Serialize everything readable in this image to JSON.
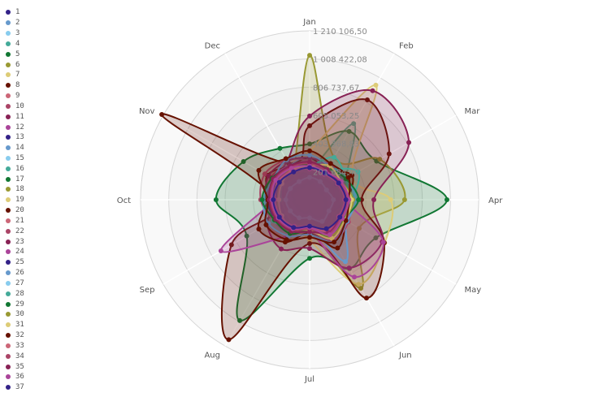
{
  "chart_data": {
    "type": "radar",
    "categories": [
      "Jan",
      "Feb",
      "Mar",
      "Apr",
      "May",
      "Jun",
      "Jul",
      "Aug",
      "Sep",
      "Oct",
      "Nov",
      "Dec"
    ],
    "rlim": [
      0,
      1210106.5
    ],
    "ticks": [
      201684.42,
      403368.83,
      605053.25,
      806737.67,
      1008422.08,
      1210106.5
    ],
    "tick_labels": [
      "201 684,42",
      "403 368,83",
      "605 053,25",
      "806 737,67",
      "1 008 422,08",
      "1 210 106,50"
    ],
    "grid": true,
    "legend_position": "left",
    "palette": [
      "#332288",
      "#6699cc",
      "#88ccee",
      "#44aa99",
      "#117733",
      "#999933",
      "#ddcc77",
      "#661100",
      "#cc6677",
      "#aa4466",
      "#882255",
      "#aa4499"
    ],
    "series": [
      {
        "name": "1",
        "values": [
          180000,
          150000,
          120000,
          200000,
          140000,
          160000,
          100000,
          130000,
          150000,
          200000,
          170000,
          160000
        ]
      },
      {
        "name": "2",
        "values": [
          250000,
          200000,
          230000,
          180000,
          210000,
          300000,
          160000,
          180000,
          200000,
          190000,
          230000,
          220000
        ]
      },
      {
        "name": "3",
        "values": [
          120000,
          140000,
          100000,
          110000,
          130000,
          150000,
          90000,
          110000,
          100000,
          120000,
          130000,
          110000
        ]
      },
      {
        "name": "4",
        "values": [
          200000,
          630000,
          300000,
          250000,
          200000,
          280000,
          150000,
          200000,
          180000,
          160000,
          170000,
          180000
        ]
      },
      {
        "name": "5",
        "values": [
          400000,
          565000,
          553000,
          983000,
          547000,
          570000,
          420000,
          1000000,
          520000,
          670000,
          547000,
          425000
        ]
      },
      {
        "name": "6",
        "values": [
          1035000,
          350000,
          580000,
          680000,
          410000,
          733000,
          230000,
          290000,
          230000,
          175000,
          230000,
          230000
        ]
      },
      {
        "name": "7",
        "values": [
          350000,
          948000,
          350000,
          580000,
          620000,
          700000,
          290000,
          230000,
          175000,
          175000,
          175000,
          290000
        ]
      },
      {
        "name": "8",
        "values": [
          530000,
          826000,
          657000,
          372000,
          617000,
          814000,
          314000,
          1158000,
          646000,
          239000,
          1222000,
          302000
        ]
      },
      {
        "name": "9",
        "values": [
          150000,
          180000,
          200000,
          170000,
          220000,
          250000,
          140000,
          160000,
          230000,
          350000,
          200000,
          250000
        ]
      },
      {
        "name": "10",
        "values": [
          200000,
          300000,
          250000,
          280000,
          300000,
          320000,
          200000,
          250000,
          280000,
          300000,
          320000,
          280000
        ]
      },
      {
        "name": "11",
        "values": [
          600000,
          902000,
          820000,
          460000,
          600000,
          565000,
          350000,
          407000,
          349000,
          233000,
          291000,
          320000
        ]
      },
      {
        "name": "12",
        "values": [
          250000,
          300000,
          280000,
          250000,
          610000,
          640000,
          230000,
          300000,
          733000,
          250000,
          230000,
          200000
        ]
      },
      {
        "name": "13",
        "values": [
          220000,
          180000,
          200000,
          250000,
          190000,
          210000,
          170000,
          230000,
          260000,
          240000,
          220000,
          190000
        ]
      },
      {
        "name": "14",
        "values": [
          300000,
          250000,
          280000,
          350000,
          300000,
          512000,
          200000,
          280000,
          300000,
          320000,
          250000,
          280000
        ]
      },
      {
        "name": "15",
        "values": [
          150000,
          120000,
          130000,
          140000,
          160000,
          170000,
          110000,
          120000,
          130000,
          140000,
          150000,
          140000
        ]
      },
      {
        "name": "16",
        "values": [
          180000,
          250000,
          400000,
          300000,
          220000,
          250000,
          170000,
          200000,
          220000,
          180000,
          200000,
          170000
        ]
      },
      {
        "name": "17",
        "values": [
          200000,
          220000,
          250000,
          300000,
          250000,
          230000,
          180000,
          250000,
          220000,
          260000,
          240000,
          210000
        ]
      },
      {
        "name": "18",
        "values": [
          230000,
          200000,
          250000,
          300000,
          200000,
          280000,
          160000,
          200000,
          180000,
          170000,
          200000,
          190000
        ]
      },
      {
        "name": "19",
        "values": [
          200000,
          250000,
          230000,
          280000,
          260000,
          300000,
          180000,
          210000,
          190000,
          200000,
          220000,
          230000
        ]
      },
      {
        "name": "20",
        "values": [
          300000,
          250000,
          350000,
          280000,
          300000,
          400000,
          240000,
          350000,
          420000,
          300000,
          350000,
          280000
        ]
      },
      {
        "name": "21",
        "values": [
          200000,
          190000,
          220000,
          230000,
          250000,
          270000,
          180000,
          210000,
          240000,
          260000,
          300000,
          230000
        ]
      },
      {
        "name": "22",
        "values": [
          280000,
          260000,
          300000,
          290000,
          320000,
          340000,
          230000,
          280000,
          300000,
          350000,
          370000,
          330000
        ]
      },
      {
        "name": "23",
        "values": [
          300000,
          280000,
          260000,
          250000,
          270000,
          290000,
          220000,
          260000,
          280000,
          310000,
          340000,
          320000
        ]
      },
      {
        "name": "24",
        "values": [
          230000,
          250000,
          270000,
          290000,
          310000,
          330000,
          210000,
          250000,
          280000,
          300000,
          310000,
          280000
        ]
      },
      {
        "name": "25",
        "values": [
          260000,
          240000,
          220000,
          300000,
          260000,
          250000,
          200000,
          240000,
          280000,
          300000,
          260000,
          240000
        ]
      },
      {
        "name": "26",
        "values": [
          320000,
          280000,
          300000,
          330000,
          310000,
          350000,
          250000,
          300000,
          340000,
          330000,
          300000,
          330000
        ]
      },
      {
        "name": "27",
        "values": [
          160000,
          150000,
          140000,
          170000,
          160000,
          180000,
          130000,
          150000,
          160000,
          170000,
          160000,
          150000
        ]
      },
      {
        "name": "28",
        "values": [
          240000,
          350000,
          300000,
          270000,
          260000,
          280000,
          200000,
          230000,
          300000,
          210000,
          230000,
          260000
        ]
      },
      {
        "name": "29",
        "values": [
          250000,
          260000,
          300000,
          350000,
          280000,
          300000,
          220000,
          280000,
          290000,
          340000,
          310000,
          270000
        ]
      },
      {
        "name": "30",
        "values": [
          270000,
          240000,
          260000,
          310000,
          290000,
          300000,
          200000,
          260000,
          250000,
          230000,
          240000,
          260000
        ]
      },
      {
        "name": "31",
        "values": [
          240000,
          280000,
          260000,
          300000,
          290000,
          320000,
          220000,
          240000,
          230000,
          220000,
          230000,
          250000
        ]
      },
      {
        "name": "32",
        "values": [
          350000,
          300000,
          320000,
          280000,
          300000,
          350000,
          270000,
          330000,
          360000,
          300000,
          420000,
          340000
        ]
      },
      {
        "name": "33",
        "values": [
          220000,
          210000,
          230000,
          250000,
          240000,
          260000,
          190000,
          220000,
          240000,
          250000,
          260000,
          240000
        ]
      },
      {
        "name": "34",
        "values": [
          260000,
          240000,
          250000,
          270000,
          260000,
          280000,
          210000,
          250000,
          270000,
          280000,
          290000,
          270000
        ]
      },
      {
        "name": "35",
        "values": [
          270000,
          250000,
          240000,
          260000,
          250000,
          270000,
          230000,
          260000,
          280000,
          290000,
          300000,
          280000
        ]
      },
      {
        "name": "36",
        "values": [
          240000,
          230000,
          260000,
          280000,
          270000,
          290000,
          200000,
          240000,
          260000,
          270000,
          280000,
          260000
        ]
      },
      {
        "name": "37",
        "values": [
          230000,
          220000,
          240000,
          260000,
          250000,
          240000,
          190000,
          230000,
          250000,
          260000,
          250000,
          230000
        ]
      }
    ]
  }
}
